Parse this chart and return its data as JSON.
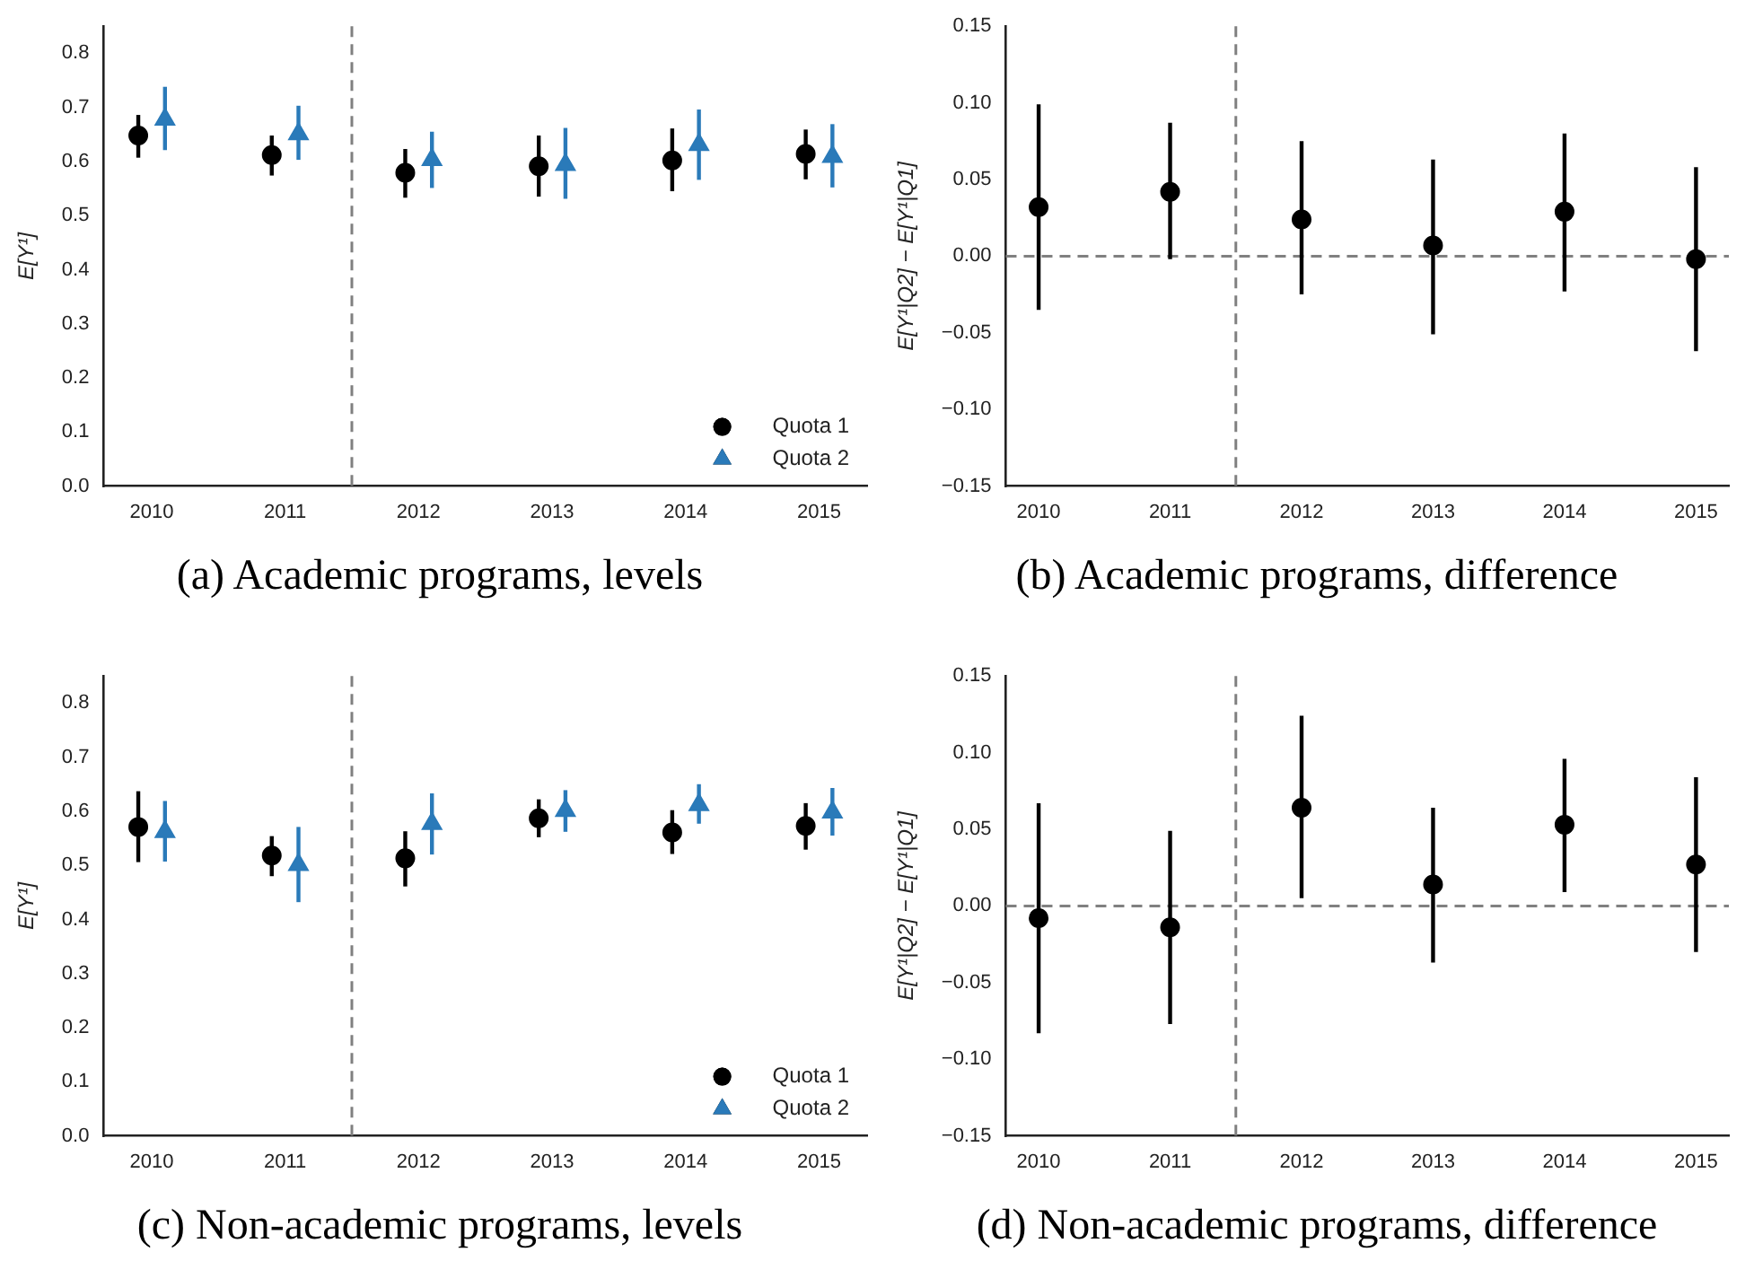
{
  "chart_data": [
    {
      "type": "scatter",
      "title": "(a) Academic programs, levels",
      "ylabel": "E[Y¹]",
      "xlim": [
        2009.64,
        2015.36
      ],
      "xticks": [
        2010,
        2011,
        2012,
        2013,
        2014,
        2015
      ],
      "ylim": [
        0,
        0.85
      ],
      "yticks": [
        {
          "value": 0,
          "label": "0.0"
        },
        0.1,
        0.2,
        0.3,
        0.4,
        0.5,
        0.6,
        0.7,
        0.8
      ],
      "grid": false,
      "legend": "bottom right",
      "series": [
        {
          "name": "Quota 1",
          "color": "#000000",
          "marker": "circle",
          "x": [
            2009.9,
            2010.9,
            2011.9,
            2012.9,
            2013.9,
            2014.9
          ],
          "values": [
            0.648,
            0.612,
            0.579,
            0.591,
            0.602,
            0.614
          ],
          "errors": [
            [
              0.607,
              0.686
            ],
            [
              0.574,
              0.648
            ],
            [
              0.533,
              0.623
            ],
            [
              0.535,
              0.648
            ],
            [
              0.545,
              0.661
            ],
            [
              0.567,
              0.659
            ]
          ]
        },
        {
          "name": "Quota 2",
          "color": "#2a7ab9",
          "marker": "triangle",
          "x": [
            2010.1,
            2011.1,
            2012.1,
            2013.1,
            2014.1,
            2015.1
          ],
          "values": [
            0.678,
            0.651,
            0.603,
            0.594,
            0.631,
            0.609
          ],
          "errors": [
            [
              0.621,
              0.738
            ],
            [
              0.603,
              0.703
            ],
            [
              0.551,
              0.655
            ],
            [
              0.531,
              0.662
            ],
            [
              0.566,
              0.696
            ],
            [
              0.552,
              0.669
            ]
          ]
        }
      ],
      "ref_lines": [
        {
          "axis": "x",
          "value": 2011.5,
          "color": "#808080",
          "line_style": "dashed"
        }
      ]
    },
    {
      "type": "scatter",
      "title": "(b) Academic programs, difference",
      "ylabel": "E[Y¹|Q2] − E[Y¹|Q1]",
      "x": [
        2010,
        2011,
        2012,
        2013,
        2014,
        2015
      ],
      "xlim": [
        2009.75,
        2015.25
      ],
      "xticks": [
        2010,
        2011,
        2012,
        2013,
        2014,
        2015
      ],
      "ylim": [
        -0.15,
        0.15
      ],
      "yticks": [
        {
          "value": -0.15,
          "label": "−0.15"
        },
        {
          "value": -0.1,
          "label": "−0.10"
        },
        {
          "value": -0.05,
          "label": "−0.05"
        },
        {
          "value": 0,
          "label": "0.00"
        },
        0.05,
        {
          "value": 0.1,
          "label": "0.10"
        },
        0.15
      ],
      "grid": false,
      "series": [
        {
          "color": "#000000",
          "marker": "circle",
          "values": [
            0.032,
            0.042,
            0.024,
            0.007,
            0.029,
            -0.002
          ],
          "errors": [
            [
              -0.035,
              0.099
            ],
            [
              -0.002,
              0.087
            ],
            [
              -0.025,
              0.075
            ],
            [
              -0.051,
              0.063
            ],
            [
              -0.023,
              0.08
            ],
            [
              -0.062,
              0.058
            ]
          ]
        }
      ],
      "ref_lines": [
        {
          "axis": "x",
          "value": 2011.5,
          "color": "#808080",
          "line_style": "dashed"
        },
        {
          "axis": "y",
          "value": 0,
          "color": "#808080",
          "line_style": "dashed"
        }
      ]
    },
    {
      "type": "scatter",
      "title": "(c) Non-academic programs, levels",
      "ylabel": "E[Y¹]",
      "xlim": [
        2009.64,
        2015.36
      ],
      "xticks": [
        2010,
        2011,
        2012,
        2013,
        2014,
        2015
      ],
      "ylim": [
        0,
        0.85
      ],
      "yticks": [
        {
          "value": 0,
          "label": "0.0"
        },
        0.1,
        0.2,
        0.3,
        0.4,
        0.5,
        0.6,
        0.7,
        0.8
      ],
      "grid": false,
      "legend": "bottom right",
      "series": [
        {
          "name": "Quota 1",
          "color": "#000000",
          "marker": "circle",
          "x": [
            2009.9,
            2010.9,
            2011.9,
            2012.9,
            2013.9,
            2014.9
          ],
          "values": [
            0.571,
            0.518,
            0.513,
            0.587,
            0.561,
            0.573
          ],
          "errors": [
            [
              0.506,
              0.637
            ],
            [
              0.48,
              0.554
            ],
            [
              0.461,
              0.563
            ],
            [
              0.552,
              0.622
            ],
            [
              0.521,
              0.602
            ],
            [
              0.529,
              0.615
            ]
          ]
        },
        {
          "name": "Quota 2",
          "color": "#2a7ab9",
          "marker": "triangle",
          "x": [
            2010.1,
            2011.1,
            2012.1,
            2013.1,
            2014.1,
            2015.1
          ],
          "values": [
            0.562,
            0.501,
            0.577,
            0.601,
            0.612,
            0.598
          ],
          "errors": [
            [
              0.507,
              0.619
            ],
            [
              0.432,
              0.571
            ],
            [
              0.52,
              0.633
            ],
            [
              0.562,
              0.639
            ],
            [
              0.577,
              0.65
            ],
            [
              0.555,
              0.643
            ]
          ]
        }
      ],
      "ref_lines": [
        {
          "axis": "x",
          "value": 2011.5,
          "color": "#808080",
          "line_style": "dashed"
        }
      ]
    },
    {
      "type": "scatter",
      "title": "(d) Non-academic programs, difference",
      "ylabel": "E[Y¹|Q2] − E[Y¹|Q1]",
      "x": [
        2010,
        2011,
        2012,
        2013,
        2014,
        2015
      ],
      "xlim": [
        2009.75,
        2015.25
      ],
      "xticks": [
        2010,
        2011,
        2012,
        2013,
        2014,
        2015
      ],
      "ylim": [
        -0.15,
        0.15
      ],
      "yticks": [
        {
          "value": -0.15,
          "label": "−0.15"
        },
        {
          "value": -0.1,
          "label": "−0.10"
        },
        {
          "value": -0.05,
          "label": "−0.05"
        },
        {
          "value": 0,
          "label": "0.00"
        },
        0.05,
        {
          "value": 0.1,
          "label": "0.10"
        },
        0.15
      ],
      "grid": false,
      "series": [
        {
          "color": "#000000",
          "marker": "circle",
          "values": [
            -0.008,
            -0.014,
            0.064,
            0.014,
            0.053,
            0.027
          ],
          "errors": [
            [
              -0.083,
              0.067
            ],
            [
              -0.077,
              0.049
            ],
            [
              0.005,
              0.124
            ],
            [
              -0.037,
              0.064
            ],
            [
              0.009,
              0.096
            ],
            [
              -0.03,
              0.084
            ]
          ]
        }
      ],
      "ref_lines": [
        {
          "axis": "x",
          "value": 2011.5,
          "color": "#808080",
          "line_style": "dashed"
        },
        {
          "axis": "y",
          "value": 0,
          "color": "#808080",
          "line_style": "dashed"
        }
      ]
    }
  ]
}
